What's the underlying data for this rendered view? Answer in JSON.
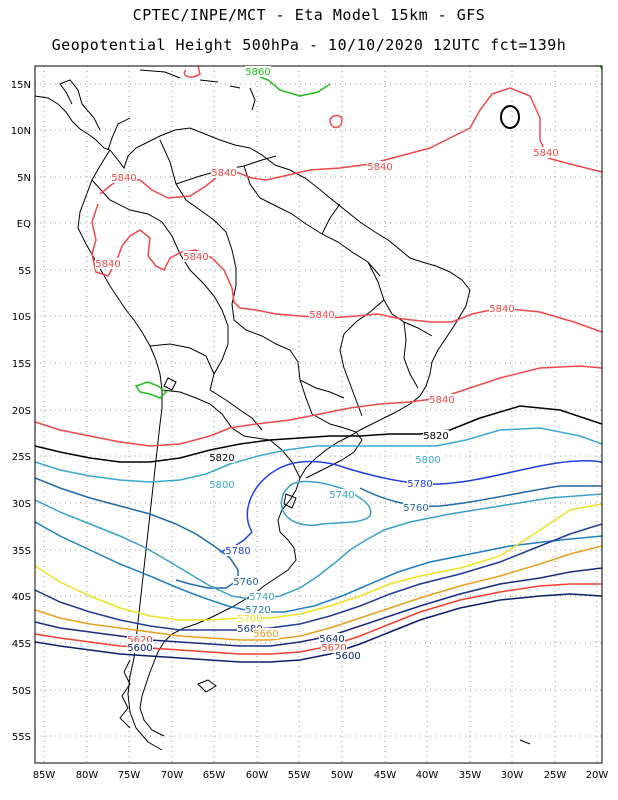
{
  "header": {
    "title_line1": "CPTEC/INPE/MCT -  Eta Model 15km - GFS",
    "title_line2": "Geopotential Height 500hPa - 10/10/2020 12UTC fct=139h"
  },
  "axes": {
    "lat_labels": [
      "15N",
      "10N",
      "5N",
      "EQ",
      "5S",
      "10S",
      "15S",
      "20S",
      "25S",
      "30S",
      "35S",
      "40S",
      "45S",
      "50S",
      "55S"
    ],
    "lon_labels": [
      "85W",
      "80W",
      "75W",
      "70W",
      "65W",
      "60W",
      "55W",
      "50W",
      "45W",
      "40W",
      "35W",
      "30W",
      "25W",
      "20W"
    ],
    "grid": "dotted"
  },
  "contours": {
    "colors": {
      "5600": "#0b1e6e",
      "5620": "#f04030",
      "5640": "#1a2a80",
      "5660": "#e8a020",
      "5680": "#1e3c96",
      "5700": "#f0e020",
      "5720": "#2080c0",
      "5740": "#3aa0c8",
      "5760": "#2068a8",
      "5780": "#1f40e0",
      "5800": "#38a8d0",
      "5820": "#000000",
      "5840": "#f04848",
      "5860": "#20c020"
    },
    "labels": [
      {
        "text": "5860",
        "level": "5860"
      },
      {
        "text": "5840",
        "level": "5840"
      },
      {
        "text": "5840",
        "level": "5840"
      },
      {
        "text": "5840",
        "level": "5840"
      },
      {
        "text": "5840",
        "level": "5840"
      },
      {
        "text": "5840",
        "level": "5840"
      },
      {
        "text": "5840",
        "level": "5840"
      },
      {
        "text": "5840",
        "level": "5840"
      },
      {
        "text": "5840",
        "level": "5840"
      },
      {
        "text": "5840",
        "level": "5840"
      },
      {
        "text": "5820",
        "level": "5820"
      },
      {
        "text": "5820",
        "level": "5820"
      },
      {
        "text": "5800",
        "level": "5800"
      },
      {
        "text": "5800",
        "level": "5800"
      },
      {
        "text": "5780",
        "level": "5780"
      },
      {
        "text": "5780",
        "level": "5780"
      },
      {
        "text": "5760",
        "level": "5760"
      },
      {
        "text": "5760",
        "level": "5760"
      },
      {
        "text": "5740",
        "level": "5740"
      },
      {
        "text": "5740",
        "level": "5740"
      },
      {
        "text": "5720",
        "level": "5720"
      },
      {
        "text": "5700",
        "level": "5700"
      },
      {
        "text": "5680",
        "level": "5680"
      },
      {
        "text": "5660",
        "level": "5660"
      },
      {
        "text": "5640",
        "level": "5640"
      },
      {
        "text": "5620",
        "level": "5620"
      },
      {
        "text": "5620",
        "level": "5620"
      },
      {
        "text": "5600",
        "level": "5600"
      },
      {
        "text": "5600",
        "level": "5600"
      }
    ]
  }
}
